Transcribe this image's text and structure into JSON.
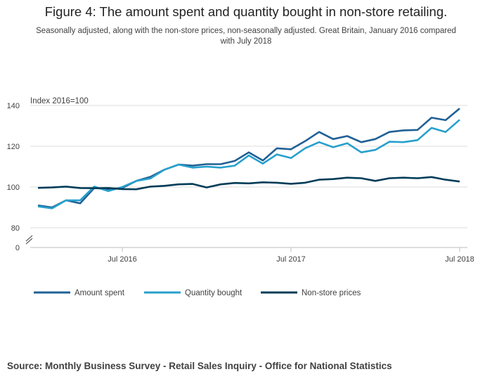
{
  "title": "Figure 4: The amount spent and quantity bought in non-store retailing.",
  "subtitle": "Seasonally adjusted, along with the non-store prices, non-seasonally adjusted. Great Britain, January 2016 compared with July 2018",
  "source": "Source: Monthly Business Survey - Retail Sales Inquiry - Office for National Statistics",
  "chart_data": {
    "type": "line",
    "title": "Figure 4: The amount spent and quantity bought in non-store retailing.",
    "ylabel": "Index 2016=100",
    "xlabel": "",
    "ylim": [
      80,
      140
    ],
    "y_axis_break": true,
    "y_ticks": [
      140,
      120,
      100,
      80,
      0
    ],
    "x_ticks": [
      {
        "index": 6,
        "label": "Jul 2016"
      },
      {
        "index": 18,
        "label": "Jul 2017"
      },
      {
        "index": 30,
        "label": "Jul 2018"
      }
    ],
    "x": [
      "Jan 2016",
      "Feb 2016",
      "Mar 2016",
      "Apr 2016",
      "May 2016",
      "Jun 2016",
      "Jul 2016",
      "Aug 2016",
      "Sep 2016",
      "Oct 2016",
      "Nov 2016",
      "Dec 2016",
      "Jan 2017",
      "Feb 2017",
      "Mar 2017",
      "Apr 2017",
      "May 2017",
      "Jun 2017",
      "Jul 2017",
      "Aug 2017",
      "Sep 2017",
      "Oct 2017",
      "Nov 2017",
      "Dec 2017",
      "Jan 2018",
      "Feb 2018",
      "Mar 2018",
      "Apr 2018",
      "May 2018",
      "Jun 2018",
      "Jul 2018"
    ],
    "series": [
      {
        "name": "Amount spent",
        "color": "#206095",
        "values": [
          91.0,
          90.0,
          93.5,
          92.0,
          99.5,
          99.0,
          99.5,
          103.0,
          105.0,
          108.5,
          111.0,
          110.5,
          111.2,
          111.2,
          112.8,
          117.0,
          113.0,
          119.0,
          118.5,
          122.5,
          127.0,
          123.5,
          125.0,
          122.0,
          123.5,
          127.0,
          127.8,
          128.0,
          134.0,
          132.8,
          138.5
        ]
      },
      {
        "name": "Quantity bought",
        "color": "#27a0cc",
        "values": [
          90.5,
          89.5,
          93.5,
          93.5,
          100.2,
          98.0,
          100.0,
          103.0,
          104.2,
          108.5,
          111.0,
          109.5,
          110.0,
          109.5,
          110.5,
          115.5,
          111.5,
          116.0,
          114.2,
          119.0,
          122.0,
          119.5,
          121.5,
          117.0,
          118.2,
          122.2,
          122.0,
          123.0,
          129.0,
          127.0,
          133.0
        ]
      },
      {
        "name": "Non-store prices",
        "color": "#003c57",
        "values": [
          99.6,
          99.8,
          100.2,
          99.5,
          99.4,
          99.5,
          99.0,
          98.9,
          100.2,
          100.6,
          101.3,
          101.5,
          99.8,
          101.3,
          102.0,
          101.8,
          102.3,
          102.1,
          101.6,
          102.1,
          103.6,
          103.9,
          104.6,
          104.3,
          103.0,
          104.3,
          104.6,
          104.3,
          104.9,
          103.6,
          102.7
        ]
      }
    ]
  }
}
